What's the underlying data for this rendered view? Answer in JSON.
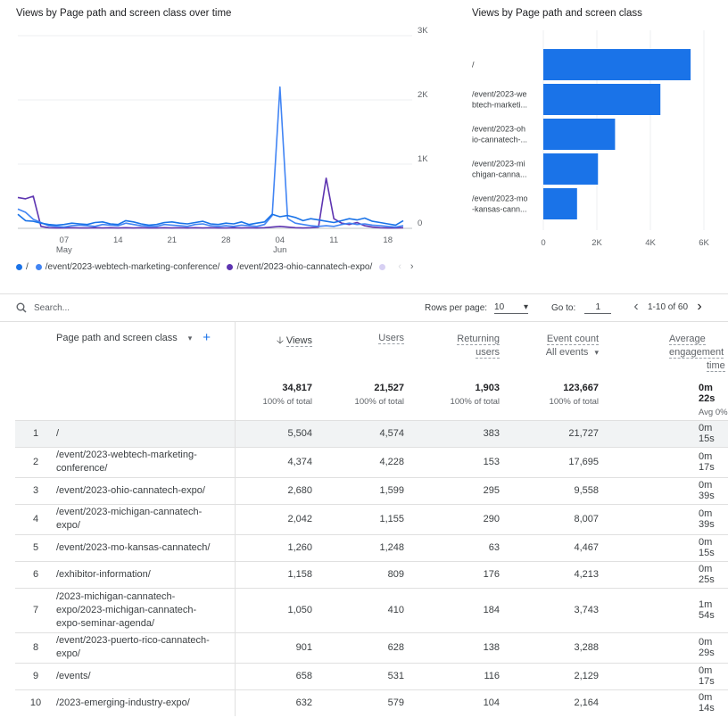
{
  "line_chart": {
    "title": "Views by Page path and screen class over time",
    "y_ticks": [
      "3K",
      "2K",
      "1K",
      "0"
    ],
    "x_ticks": [
      {
        "day": "07",
        "month": "May"
      },
      {
        "day": "14",
        "month": ""
      },
      {
        "day": "21",
        "month": ""
      },
      {
        "day": "28",
        "month": ""
      },
      {
        "day": "04",
        "month": "Jun"
      },
      {
        "day": "11",
        "month": ""
      },
      {
        "day": "18",
        "month": ""
      }
    ]
  },
  "bar_chart": {
    "title": "Views by Page path and screen class",
    "x_ticks": [
      "0",
      "2K",
      "4K",
      "6K"
    ]
  },
  "chart_data": [
    {
      "type": "line",
      "title": "Views by Page path and screen class over time",
      "ylim": [
        0,
        3000
      ],
      "x": [
        "2023-05-01",
        "2023-05-02",
        "2023-05-03",
        "2023-05-04",
        "2023-05-05",
        "2023-05-06",
        "2023-05-07",
        "2023-05-08",
        "2023-05-09",
        "2023-05-10",
        "2023-05-11",
        "2023-05-12",
        "2023-05-13",
        "2023-05-14",
        "2023-05-15",
        "2023-05-16",
        "2023-05-17",
        "2023-05-18",
        "2023-05-19",
        "2023-05-20",
        "2023-05-21",
        "2023-05-22",
        "2023-05-23",
        "2023-05-24",
        "2023-05-25",
        "2023-05-26",
        "2023-05-27",
        "2023-05-28",
        "2023-05-29",
        "2023-05-30",
        "2023-05-31",
        "2023-06-01",
        "2023-06-02",
        "2023-06-03",
        "2023-06-04",
        "2023-06-05",
        "2023-06-06",
        "2023-06-07",
        "2023-06-08",
        "2023-06-09",
        "2023-06-10",
        "2023-06-11",
        "2023-06-12",
        "2023-06-13",
        "2023-06-14",
        "2023-06-15",
        "2023-06-16",
        "2023-06-17",
        "2023-06-18",
        "2023-06-19",
        "2023-06-20"
      ],
      "series": [
        {
          "name": "/",
          "color": "#1a73e8",
          "values": [
            220,
            120,
            110,
            80,
            60,
            50,
            60,
            80,
            70,
            60,
            90,
            100,
            70,
            60,
            120,
            100,
            70,
            50,
            60,
            90,
            100,
            80,
            70,
            90,
            110,
            70,
            60,
            80,
            70,
            100,
            60,
            80,
            100,
            220,
            180,
            200,
            170,
            120,
            150,
            130,
            110,
            90,
            120,
            150,
            130,
            160,
            110,
            90,
            70,
            50,
            120
          ]
        },
        {
          "name": "/event/2023-webtech-marketing-conference/",
          "color": "#4285f4",
          "values": [
            300,
            250,
            140,
            90,
            40,
            30,
            20,
            40,
            50,
            40,
            30,
            60,
            50,
            40,
            80,
            60,
            40,
            30,
            30,
            60,
            50,
            40,
            30,
            60,
            70,
            40,
            30,
            40,
            30,
            50,
            40,
            30,
            60,
            200,
            2200,
            150,
            80,
            60,
            40,
            30,
            40,
            30,
            60,
            80,
            60,
            70,
            50,
            40,
            30,
            20,
            40
          ]
        },
        {
          "name": "/event/2023-ohio-cannatech-expo/",
          "color": "#5e35b1",
          "values": [
            480,
            460,
            500,
            30,
            10,
            5,
            5,
            10,
            5,
            5,
            10,
            5,
            10,
            5,
            10,
            5,
            10,
            5,
            5,
            10,
            5,
            10,
            5,
            10,
            5,
            10,
            5,
            5,
            10,
            5,
            10,
            5,
            10,
            20,
            30,
            20,
            10,
            5,
            10,
            20,
            780,
            150,
            80,
            60,
            90,
            40,
            20,
            10,
            5,
            5,
            10
          ]
        }
      ]
    },
    {
      "type": "bar",
      "title": "Views by Page path and screen class",
      "categories": [
        "/",
        "/event/2023-webtech-marketi...",
        "/event/2023-ohio-cannatech-...",
        "/event/2023-michigan-canna...",
        "/event/2023-mo-kansas-cann..."
      ],
      "values": [
        5504,
        4374,
        2680,
        2042,
        1260
      ],
      "xlim": [
        0,
        6000
      ],
      "color": "#1a73e8"
    }
  ],
  "legend": {
    "items": [
      {
        "label": "/",
        "color": "#1a73e8"
      },
      {
        "label": "/event/2023-webtech-marketing-conference/",
        "color": "#4285f4"
      },
      {
        "label": "/event/2023-ohio-cannatech-expo/",
        "color": "#5e35b1"
      }
    ],
    "more_color": "#d7d0f3"
  },
  "bar_labels": [
    [
      "/"
    ],
    [
      "/event/2023-we",
      "btech-marketi..."
    ],
    [
      "/event/2023-oh",
      "io-cannatech-..."
    ],
    [
      "/event/2023-mi",
      "chigan-canna..."
    ],
    [
      "/event/2023-mo",
      "-kansas-cann..."
    ]
  ],
  "toolbar": {
    "search_placeholder": "Search...",
    "rows_per_page_label": "Rows per page:",
    "rows_per_page_value": "10",
    "goto_label": "Go to:",
    "goto_value": "1",
    "range": "1-10 of 60"
  },
  "table": {
    "dimension_header": "Page path and screen class",
    "headers": {
      "views": "Views",
      "users": "Users",
      "returning_1": "Returning",
      "returning_2": "users",
      "event_count": "Event count",
      "event_filter": "All events",
      "avg_1": "Average",
      "avg_2": "engagement",
      "avg_3": "time"
    },
    "totals": {
      "views": "34,817",
      "views_sub": "100% of total",
      "users": "21,527",
      "users_sub": "100% of total",
      "returning": "1,903",
      "returning_sub": "100% of total",
      "events": "123,667",
      "events_sub": "100% of total",
      "avg": "0m 22s",
      "avg_sub": "Avg 0%"
    },
    "rows": [
      {
        "idx": "1",
        "path": [
          "/"
        ],
        "views": "5,504",
        "users": "4,574",
        "returning": "383",
        "events": "21,727",
        "avg": "0m 15s"
      },
      {
        "idx": "2",
        "path": [
          "/event/2023-webtech-marketing-",
          "conference/"
        ],
        "views": "4,374",
        "users": "4,228",
        "returning": "153",
        "events": "17,695",
        "avg": "0m 17s"
      },
      {
        "idx": "3",
        "path": [
          "/event/2023-ohio-cannatech-expo/"
        ],
        "views": "2,680",
        "users": "1,599",
        "returning": "295",
        "events": "9,558",
        "avg": "0m 39s"
      },
      {
        "idx": "4",
        "path": [
          "/event/2023-michigan-cannatech-",
          "expo/"
        ],
        "views": "2,042",
        "users": "1,155",
        "returning": "290",
        "events": "8,007",
        "avg": "0m 39s"
      },
      {
        "idx": "5",
        "path": [
          "/event/2023-mo-kansas-cannatech/"
        ],
        "views": "1,260",
        "users": "1,248",
        "returning": "63",
        "events": "4,467",
        "avg": "0m 15s"
      },
      {
        "idx": "6",
        "path": [
          "/exhibitor-information/"
        ],
        "views": "1,158",
        "users": "809",
        "returning": "176",
        "events": "4,213",
        "avg": "0m 25s"
      },
      {
        "idx": "7",
        "path": [
          "/2023-michigan-cannatech-",
          "expo/2023-michigan-cannatech-",
          "expo-seminar-agenda/"
        ],
        "views": "1,050",
        "users": "410",
        "returning": "184",
        "events": "3,743",
        "avg": "1m 54s"
      },
      {
        "idx": "8",
        "path": [
          "/event/2023-puerto-rico-cannatech-",
          "expo/"
        ],
        "views": "901",
        "users": "628",
        "returning": "138",
        "events": "3,288",
        "avg": "0m 29s"
      },
      {
        "idx": "9",
        "path": [
          "/events/"
        ],
        "views": "658",
        "users": "531",
        "returning": "116",
        "events": "2,129",
        "avg": "0m 17s"
      },
      {
        "idx": "10",
        "path": [
          "/2023-emerging-industry-expo/"
        ],
        "views": "632",
        "users": "579",
        "returning": "104",
        "events": "2,164",
        "avg": "0m 14s"
      }
    ]
  }
}
